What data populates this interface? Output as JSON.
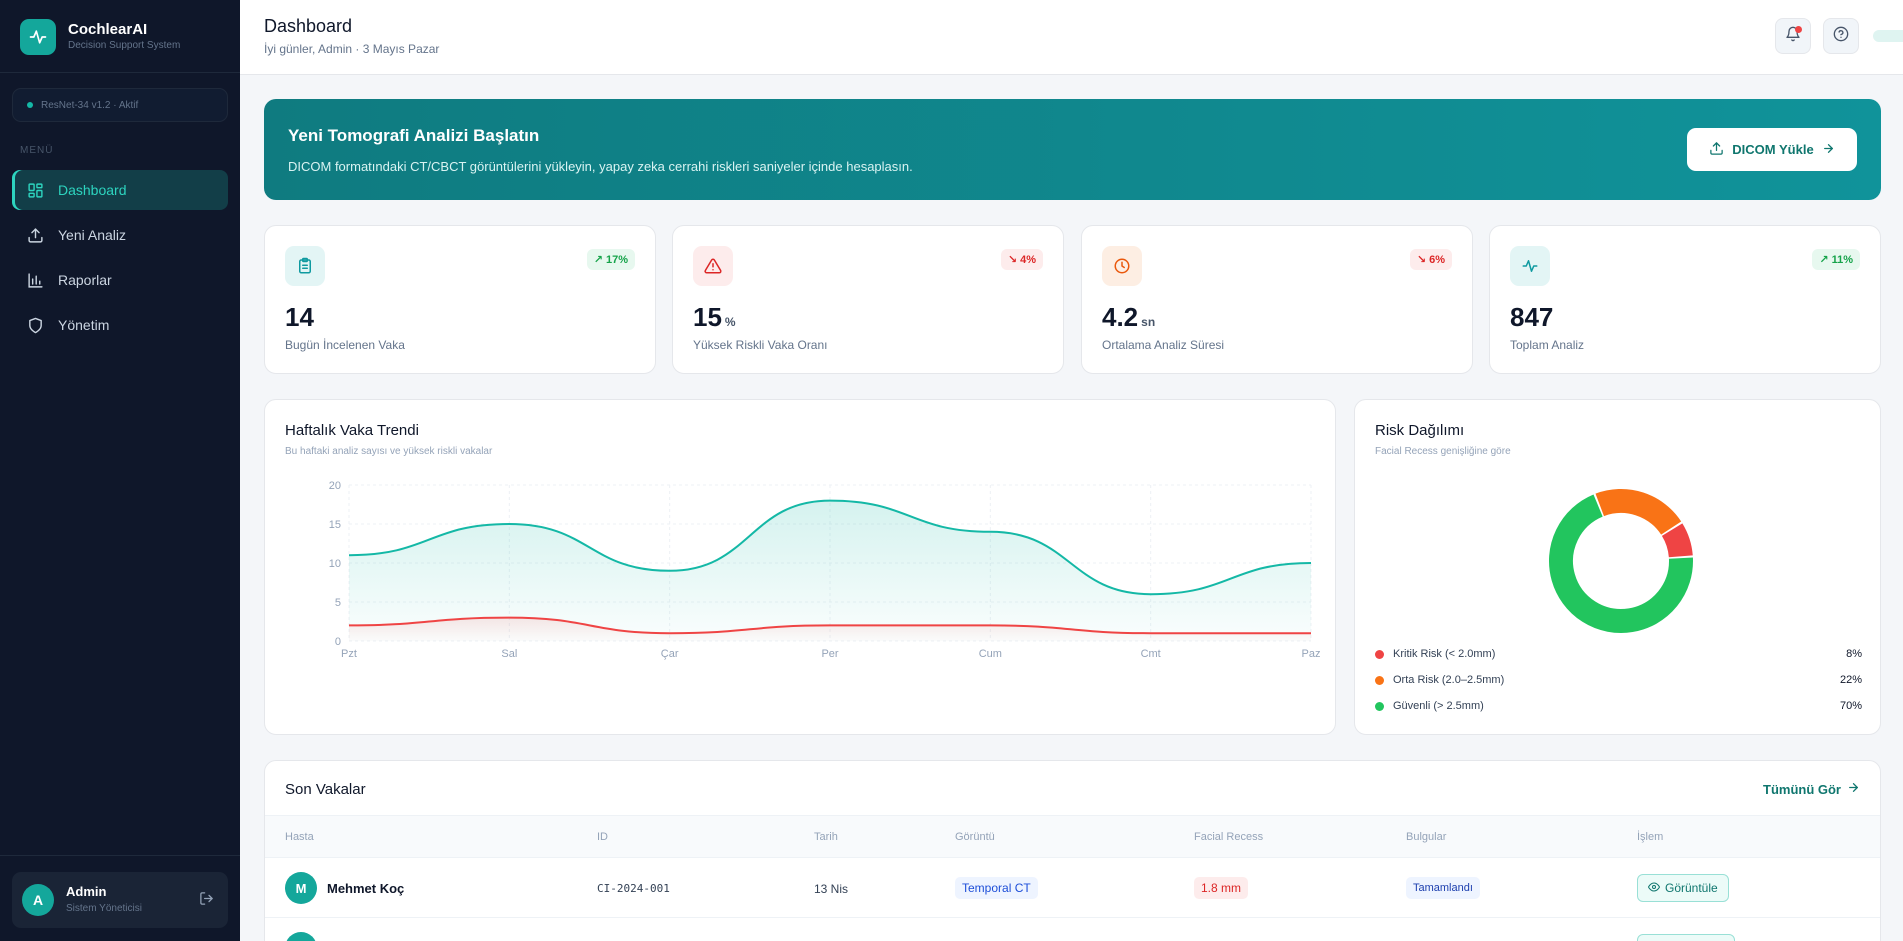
{
  "app": {
    "name": "CochlearAI",
    "subtitle": "Decision Support System"
  },
  "model_status": "ResNet-34 v1.2 · Aktif",
  "menu_label": "MENÜ",
  "nav": [
    {
      "label": "Dashboard",
      "icon": "dashboard-icon",
      "active": true
    },
    {
      "label": "Yeni Analiz",
      "icon": "upload-icon",
      "active": false
    },
    {
      "label": "Raporlar",
      "icon": "bar-chart-icon",
      "active": false
    },
    {
      "label": "Yönetim",
      "icon": "shield-icon",
      "active": false
    }
  ],
  "user": {
    "initial": "A",
    "name": "Admin",
    "role": "Sistem Yöneticisi"
  },
  "header": {
    "title": "Dashboard",
    "greeting": "İyi günler, Admin · 3 Mayıs Pazar"
  },
  "banner": {
    "title": "Yeni Tomografi Analizi Başlatın",
    "description": "DICOM formatındaki CT/CBCT görüntülerini yükleyin, yapay zeka cerrahi riskleri saniyeler içinde hesaplasın.",
    "button_label": "DICOM Yükle"
  },
  "stats": [
    {
      "value": "14",
      "unit": "",
      "label": "Bugün İncelenen Vaka",
      "trend": "17%",
      "direction": "up",
      "icon": "clipboard-icon",
      "color": "#0f9aa0",
      "bg": "#e3f5f5"
    },
    {
      "value": "15",
      "unit": "%",
      "label": "Yüksek Riskli Vaka Oranı",
      "trend": "4%",
      "direction": "down",
      "icon": "warning-icon",
      "color": "#dc2626",
      "bg": "#fdecec"
    },
    {
      "value": "4.2",
      "unit": "sn",
      "label": "Ortalama Analiz Süresi",
      "trend": "6%",
      "direction": "down",
      "icon": "clock-icon",
      "color": "#ea580c",
      "bg": "#fdeee3"
    },
    {
      "value": "847",
      "unit": "",
      "label": "Toplam Analiz",
      "trend": "11%",
      "direction": "up",
      "icon": "activity-icon",
      "color": "#0f9aa0",
      "bg": "#e3f5f5"
    }
  ],
  "weekly_chart": {
    "title": "Haftalık Vaka Trendi",
    "subtitle": "Bu haftaki analiz sayısı ve yüksek riskli vakalar"
  },
  "risk_chart": {
    "title": "Risk Dağılımı",
    "subtitle": "Facial Recess genişliğine göre",
    "legend": [
      {
        "label": "Kritik Risk (< 2.0mm)",
        "pct": "8%",
        "color": "#ef4444"
      },
      {
        "label": "Orta Risk (2.0–2.5mm)",
        "pct": "22%",
        "color": "#f97316"
      },
      {
        "label": "Güvenli (> 2.5mm)",
        "pct": "70%",
        "color": "#22c55e"
      }
    ]
  },
  "chart_data": [
    {
      "type": "area",
      "title": "Haftalık Vaka Trendi",
      "categories": [
        "Pzt",
        "Sal",
        "Çar",
        "Per",
        "Cum",
        "Cmt",
        "Paz"
      ],
      "series": [
        {
          "values": [
            11,
            15,
            9,
            18,
            14,
            6,
            10
          ],
          "color": "#14b8a6"
        },
        {
          "values": [
            2,
            3,
            1,
            2,
            2,
            1,
            1
          ],
          "color": "#ef4444"
        }
      ],
      "yticks": [
        0,
        5,
        10,
        15,
        20
      ],
      "ylim": [
        0,
        20
      ],
      "grid": true
    },
    {
      "type": "pie",
      "title": "Risk Dağılımı",
      "labels": [
        "Kritik Risk (< 2.0mm)",
        "Orta Risk (2.0–2.5mm)",
        "Güvenli (> 2.5mm)"
      ],
      "values": [
        8,
        22,
        70
      ],
      "colors": [
        "#ef4444",
        "#f97316",
        "#22c55e"
      ]
    }
  ],
  "recent_cases": {
    "title": "Son Vakalar",
    "see_all": "Tümünü Gör",
    "columns": [
      "Hasta",
      "ID",
      "Tarih",
      "Görüntü",
      "Facial Recess",
      "Bulgular",
      "İşlem"
    ],
    "rows": [
      {
        "initial": "M",
        "patient": "Mehmet Koç",
        "id": "CI-2024-001",
        "date": "13 Nis",
        "image": "Temporal CT",
        "facial_recess": "1.8 mm",
        "status": "Tamamlandı",
        "action": "Görüntüle"
      }
    ]
  }
}
